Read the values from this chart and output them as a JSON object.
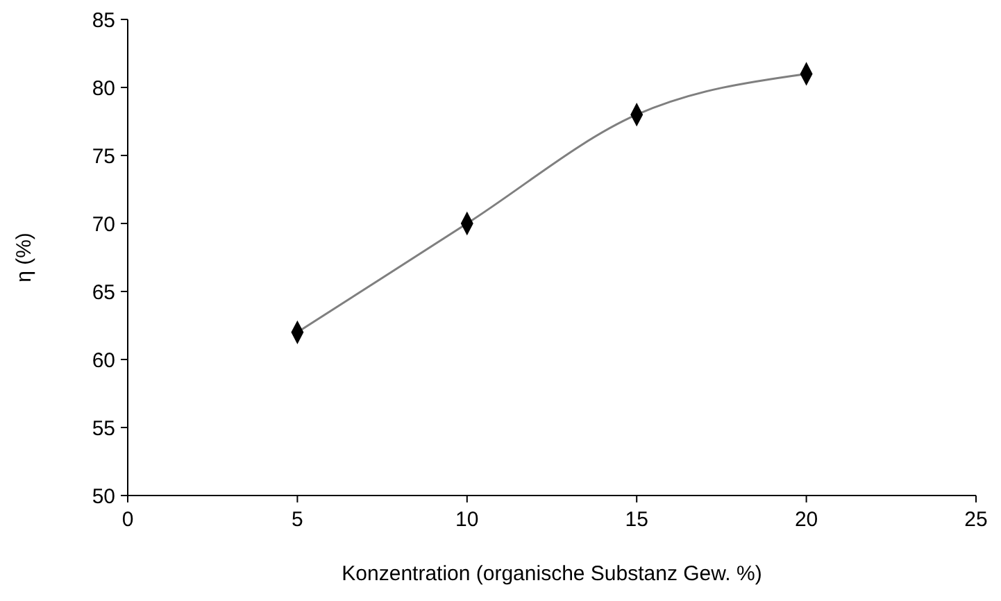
{
  "chart_data": {
    "type": "line",
    "xlabel": "Konzentration (organische Substanz Gew. %)",
    "ylabel": "η (%)",
    "x": [
      5,
      10,
      15,
      20
    ],
    "series": [
      {
        "color": "#000000",
        "values": [
          62,
          70,
          78,
          81
        ]
      }
    ],
    "xlim": [
      0,
      25
    ],
    "xticks": [
      0,
      5,
      10,
      15,
      20,
      25
    ],
    "ylim": [
      50,
      85
    ],
    "yticks": [
      50,
      55,
      60,
      65,
      70,
      75,
      80,
      85
    ],
    "grid": false,
    "marker": "diamond",
    "line_style": "solid"
  }
}
